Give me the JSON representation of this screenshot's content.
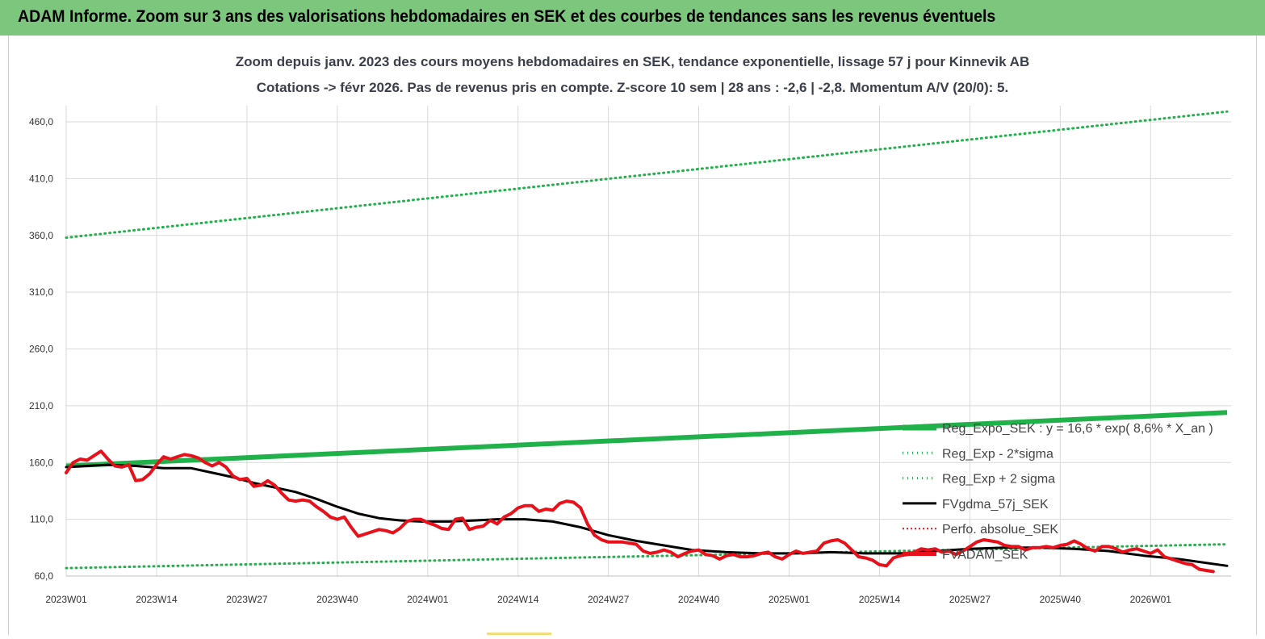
{
  "banner_title": "ADAM Informe. Zoom sur 3 ans des valorisations hebdomadaires en SEK et des courbes de tendances sans les revenus éventuels",
  "colors": {
    "banner": "#7dc67e",
    "trend": "#21b14a",
    "bands": "#21b14a",
    "gdma": "#000000",
    "price": "#e8111b",
    "perf": "#e8111b",
    "grid": "#d9d9d9"
  },
  "chart_data": {
    "type": "line",
    "title": "Zoom depuis janv. 2023 des cours moyens hebdomadaires en SEK, tendance exponentielle, lissage 57 j pour Kinnevik AB",
    "subtitle": "Cotations -> févr 2026.  Pas de revenus pris en compte. Z-score 10 sem  |  28 ans : -2,6  |  -2,8. Momentum A/V (20/0): 5.",
    "xlabel": "",
    "ylabel": "",
    "ylim": [
      60,
      475
    ],
    "y_ticks": [
      "460,0",
      "410,0",
      "360,0",
      "310,0",
      "260,0",
      "210,0",
      "160,0",
      "110,0",
      "60,0"
    ],
    "y_tick_values": [
      460,
      410,
      360,
      310,
      260,
      210,
      160,
      110,
      60
    ],
    "x_tick_labels": [
      "2023W01",
      "2023W14",
      "2023W27",
      "2023W40",
      "2024W01",
      "2024W14",
      "2024W27",
      "2024W40",
      "2025W01",
      "2025W14",
      "2025W27",
      "2025W40",
      "2026W01"
    ],
    "x_tick_index": [
      0,
      13,
      26,
      39,
      52,
      65,
      78,
      91,
      104,
      117,
      130,
      143,
      156
    ],
    "week_count": 168,
    "grid": true,
    "legend_position": "bottom-right",
    "series": [
      {
        "name": "Reg_Expo_SEK : y = 16,6 * exp( 8,6% * X_an )",
        "style": "thick",
        "points": [
          [
            0,
            157
          ],
          [
            167,
            204
          ]
        ]
      },
      {
        "name": "Reg_Exp - 2*sigma",
        "style": "dotted",
        "points": [
          [
            0,
            67
          ],
          [
            167,
            88
          ]
        ]
      },
      {
        "name": "Reg_Exp + 2 sigma",
        "style": "dotted",
        "points": [
          [
            0,
            358
          ],
          [
            167,
            469
          ]
        ]
      },
      {
        "name": "FVgdma_57j_SEK",
        "style": "solid",
        "points": [
          [
            0,
            156
          ],
          [
            6,
            158
          ],
          [
            10,
            157
          ],
          [
            14,
            155
          ],
          [
            18,
            155
          ],
          [
            21,
            151
          ],
          [
            24,
            147
          ],
          [
            27,
            142
          ],
          [
            30,
            138
          ],
          [
            33,
            134
          ],
          [
            36,
            128
          ],
          [
            39,
            121
          ],
          [
            42,
            115
          ],
          [
            45,
            111
          ],
          [
            48,
            109
          ],
          [
            51,
            108
          ],
          [
            55,
            108
          ],
          [
            59,
            109
          ],
          [
            62,
            110
          ],
          [
            66,
            110
          ],
          [
            70,
            108
          ],
          [
            74,
            103
          ],
          [
            78,
            96
          ],
          [
            82,
            91
          ],
          [
            86,
            87
          ],
          [
            90,
            83
          ],
          [
            95,
            81
          ],
          [
            100,
            80
          ],
          [
            105,
            80
          ],
          [
            110,
            81
          ],
          [
            115,
            80
          ],
          [
            120,
            80
          ],
          [
            125,
            82
          ],
          [
            130,
            84
          ],
          [
            135,
            85
          ],
          [
            140,
            85
          ],
          [
            145,
            84
          ],
          [
            150,
            82
          ],
          [
            155,
            78
          ],
          [
            160,
            75
          ],
          [
            167,
            69
          ]
        ]
      },
      {
        "name": "Perfo. absolue_SEK",
        "style": "dotted",
        "points": []
      },
      {
        "name": "FVADAM_SEK",
        "style": "thick-red",
        "points": [
          [
            0,
            151
          ],
          [
            1,
            160
          ],
          [
            2,
            163
          ],
          [
            3,
            162
          ],
          [
            4,
            166
          ],
          [
            5,
            170
          ],
          [
            6,
            163
          ],
          [
            7,
            157
          ],
          [
            8,
            156
          ],
          [
            9,
            158
          ],
          [
            10,
            144
          ],
          [
            11,
            145
          ],
          [
            12,
            150
          ],
          [
            13,
            158
          ],
          [
            14,
            165
          ],
          [
            15,
            163
          ],
          [
            16,
            165
          ],
          [
            17,
            167
          ],
          [
            18,
            166
          ],
          [
            19,
            164
          ],
          [
            20,
            160
          ],
          [
            21,
            157
          ],
          [
            22,
            160
          ],
          [
            23,
            156
          ],
          [
            24,
            148
          ],
          [
            25,
            145
          ],
          [
            26,
            146
          ],
          [
            27,
            139
          ],
          [
            28,
            140
          ],
          [
            29,
            144
          ],
          [
            30,
            140
          ],
          [
            31,
            133
          ],
          [
            32,
            127
          ],
          [
            33,
            126
          ],
          [
            34,
            127
          ],
          [
            35,
            126
          ],
          [
            36,
            121
          ],
          [
            37,
            117
          ],
          [
            38,
            112
          ],
          [
            39,
            110
          ],
          [
            40,
            112
          ],
          [
            41,
            103
          ],
          [
            42,
            95
          ],
          [
            43,
            97
          ],
          [
            44,
            99
          ],
          [
            45,
            101
          ],
          [
            46,
            100
          ],
          [
            47,
            98
          ],
          [
            48,
            102
          ],
          [
            49,
            108
          ],
          [
            50,
            110
          ],
          [
            51,
            110
          ],
          [
            52,
            107
          ],
          [
            53,
            105
          ],
          [
            54,
            102
          ],
          [
            55,
            101
          ],
          [
            56,
            110
          ],
          [
            57,
            111
          ],
          [
            58,
            101
          ],
          [
            59,
            103
          ],
          [
            60,
            104
          ],
          [
            61,
            109
          ],
          [
            62,
            106
          ],
          [
            63,
            112
          ],
          [
            64,
            115
          ],
          [
            65,
            120
          ],
          [
            66,
            122
          ],
          [
            67,
            122
          ],
          [
            68,
            117
          ],
          [
            69,
            119
          ],
          [
            70,
            118
          ],
          [
            71,
            124
          ],
          [
            72,
            126
          ],
          [
            73,
            125
          ],
          [
            74,
            120
          ],
          [
            75,
            106
          ],
          [
            76,
            96
          ],
          [
            77,
            92
          ],
          [
            78,
            90
          ],
          [
            79,
            90
          ],
          [
            80,
            90
          ],
          [
            81,
            89
          ],
          [
            82,
            88
          ],
          [
            83,
            82
          ],
          [
            84,
            80
          ],
          [
            85,
            81
          ],
          [
            86,
            83
          ],
          [
            87,
            81
          ],
          [
            88,
            77
          ],
          [
            89,
            80
          ],
          [
            90,
            82
          ],
          [
            91,
            83
          ],
          [
            92,
            79
          ],
          [
            93,
            78
          ],
          [
            94,
            75
          ],
          [
            95,
            78
          ],
          [
            96,
            79
          ],
          [
            97,
            77
          ],
          [
            98,
            77
          ],
          [
            99,
            78
          ],
          [
            100,
            80
          ],
          [
            101,
            81
          ],
          [
            102,
            77
          ],
          [
            103,
            75
          ],
          [
            104,
            79
          ],
          [
            105,
            82
          ],
          [
            106,
            80
          ],
          [
            107,
            81
          ],
          [
            108,
            82
          ],
          [
            109,
            89
          ],
          [
            110,
            91
          ],
          [
            111,
            92
          ],
          [
            112,
            89
          ],
          [
            113,
            83
          ],
          [
            114,
            77
          ],
          [
            115,
            76
          ],
          [
            116,
            74
          ],
          [
            117,
            70
          ],
          [
            118,
            69
          ],
          [
            119,
            76
          ],
          [
            120,
            78
          ],
          [
            121,
            79
          ],
          [
            122,
            81
          ],
          [
            123,
            84
          ],
          [
            124,
            83
          ],
          [
            125,
            84
          ],
          [
            126,
            81
          ],
          [
            127,
            82
          ],
          [
            128,
            79
          ],
          [
            129,
            82
          ],
          [
            130,
            86
          ],
          [
            131,
            90
          ],
          [
            132,
            92
          ],
          [
            133,
            91
          ],
          [
            134,
            90
          ],
          [
            135,
            87
          ],
          [
            136,
            86
          ],
          [
            137,
            86
          ],
          [
            138,
            83
          ],
          [
            139,
            85
          ],
          [
            140,
            85
          ],
          [
            141,
            86
          ],
          [
            142,
            85
          ],
          [
            143,
            87
          ],
          [
            144,
            88
          ],
          [
            145,
            91
          ],
          [
            146,
            88
          ],
          [
            147,
            84
          ],
          [
            148,
            82
          ],
          [
            149,
            86
          ],
          [
            150,
            86
          ],
          [
            151,
            84
          ],
          [
            152,
            81
          ],
          [
            153,
            83
          ],
          [
            154,
            84
          ],
          [
            155,
            82
          ],
          [
            156,
            80
          ],
          [
            157,
            83
          ],
          [
            158,
            77
          ],
          [
            159,
            75
          ],
          [
            160,
            73
          ],
          [
            161,
            71
          ],
          [
            162,
            70
          ],
          [
            163,
            66
          ],
          [
            164,
            65
          ],
          [
            165,
            64
          ]
        ]
      }
    ]
  }
}
